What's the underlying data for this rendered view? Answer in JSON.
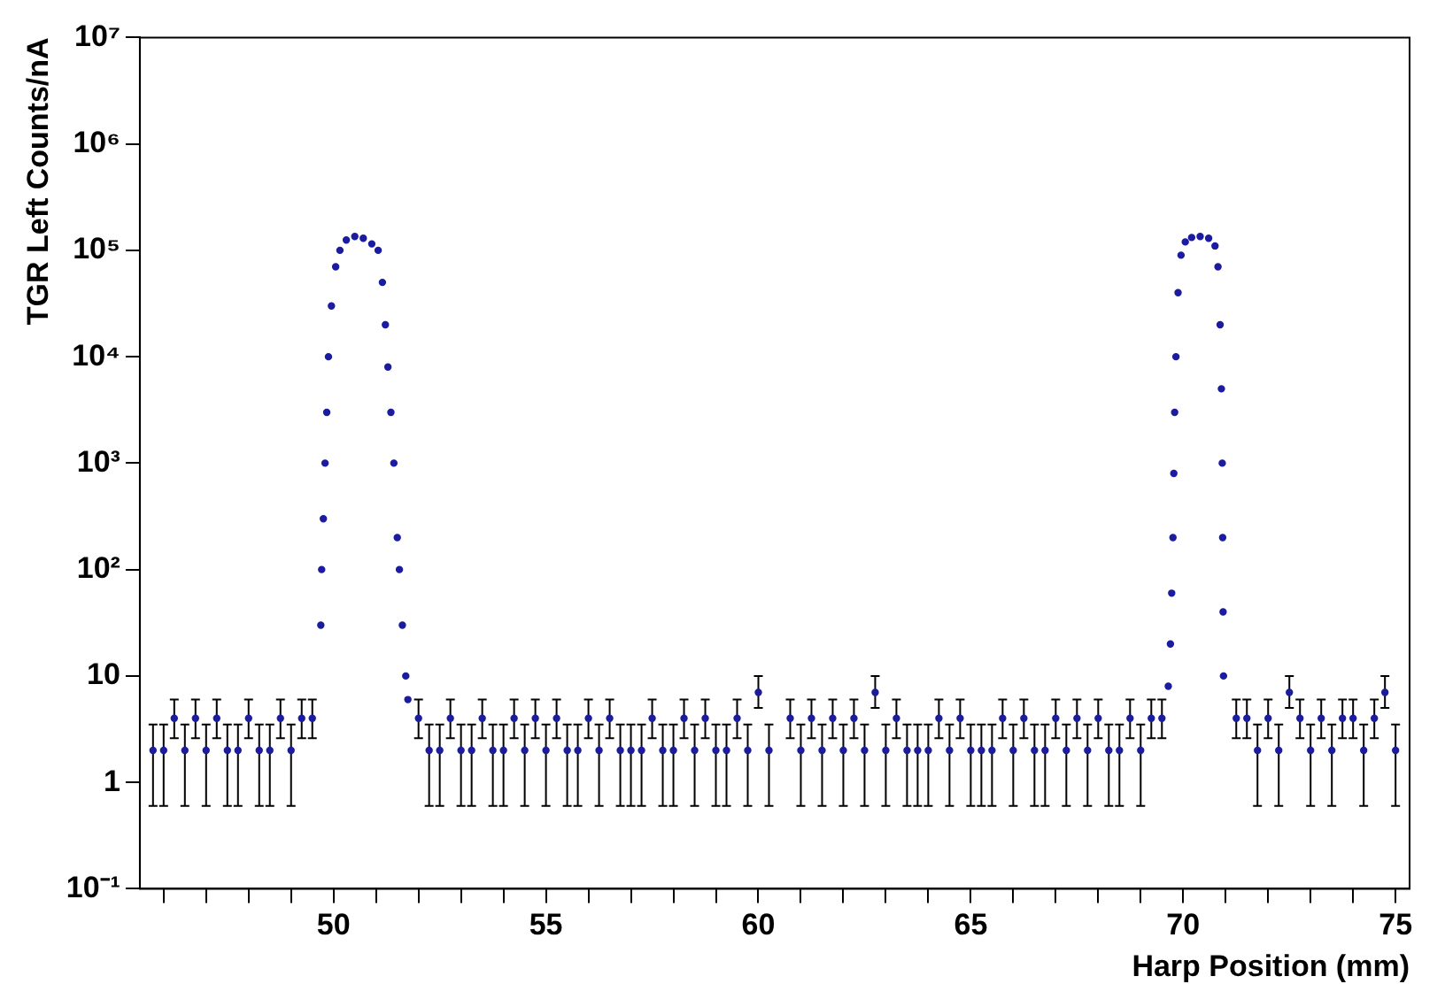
{
  "chart_data": {
    "type": "scatter",
    "xlabel": "Harp Position (mm)",
    "ylabel": "TGR Left Counts/nA",
    "log": "y",
    "grid": false,
    "legend": false,
    "marker": "circle",
    "xlim": [
      45.44,
      75.33
    ],
    "xticks": [
      {
        "value": 46,
        "label": null
      },
      {
        "value": 47,
        "label": null
      },
      {
        "value": 48,
        "label": null
      },
      {
        "value": 49,
        "label": null
      },
      50,
      {
        "value": 51,
        "label": null
      },
      {
        "value": 52,
        "label": null
      },
      {
        "value": 53,
        "label": null
      },
      {
        "value": 54,
        "label": null
      },
      55,
      {
        "value": 56,
        "label": null
      },
      {
        "value": 57,
        "label": null
      },
      {
        "value": 58,
        "label": null
      },
      {
        "value": 59,
        "label": null
      },
      60,
      {
        "value": 61,
        "label": null
      },
      {
        "value": 62,
        "label": null
      },
      {
        "value": 63,
        "label": null
      },
      {
        "value": 64,
        "label": null
      },
      65,
      {
        "value": 66,
        "label": null
      },
      {
        "value": 67,
        "label": null
      },
      {
        "value": 68,
        "label": null
      },
      {
        "value": 69,
        "label": null
      },
      70,
      {
        "value": 71,
        "label": null
      },
      {
        "value": 72,
        "label": null
      },
      {
        "value": 73,
        "label": null
      },
      {
        "value": 74,
        "label": null
      },
      75
    ],
    "ylim": [
      0.1,
      10000000
    ],
    "yticks": [
      {
        "value": 0.1,
        "label": "10⁻¹"
      },
      1,
      10,
      {
        "value": 100,
        "label": "10²"
      },
      {
        "value": 1000,
        "label": "10³"
      },
      {
        "value": 10000,
        "label": "10⁴"
      },
      {
        "value": 100000,
        "label": "10⁵"
      },
      {
        "value": 1000000,
        "label": "10⁶"
      },
      {
        "value": 10000000,
        "label": "10⁷"
      }
    ],
    "series": [
      {
        "color": "#1c1ca0",
        "x": [
          45.75,
          46,
          46.25,
          46.5,
          46.75,
          47,
          47.25,
          47.5,
          47.75,
          48,
          48.25,
          48.5,
          48.75,
          49,
          49.25,
          49.5,
          49.7,
          49.72,
          49.76,
          49.8,
          49.84,
          49.88,
          49.95,
          50.05,
          50.15,
          50.3,
          50.5,
          50.7,
          50.9,
          51.05,
          51.15,
          51.22,
          51.28,
          51.35,
          51.42,
          51.5,
          51.55,
          51.62,
          51.7,
          51.75,
          52,
          52.25,
          52.5,
          52.75,
          53,
          53.25,
          53.5,
          53.75,
          54,
          54.25,
          54.5,
          54.75,
          55,
          55.25,
          55.5,
          55.75,
          56,
          56.25,
          56.5,
          56.75,
          57,
          57.25,
          57.5,
          57.75,
          58,
          58.25,
          58.5,
          58.75,
          59,
          59.25,
          59.5,
          59.75,
          60,
          60.25,
          60.75,
          61,
          61.25,
          61.5,
          61.75,
          62,
          62.25,
          62.5,
          62.75,
          63,
          63.25,
          63.5,
          63.75,
          64,
          64.25,
          64.5,
          64.75,
          65,
          65.25,
          65.5,
          65.75,
          66,
          66.25,
          66.5,
          66.75,
          67,
          67.25,
          67.5,
          67.75,
          68,
          68.25,
          68.5,
          68.75,
          69,
          69.25,
          69.5,
          69.65,
          69.7,
          69.73,
          69.76,
          69.78,
          69.8,
          69.83,
          69.88,
          69.95,
          70.05,
          70.2,
          70.4,
          70.6,
          70.75,
          70.82,
          70.87,
          70.9,
          70.92,
          70.93,
          70.94,
          70.95,
          71.25,
          71.5,
          71.75,
          72,
          72.25,
          72.5,
          72.75,
          73,
          73.25,
          73.5,
          73.75,
          74,
          74.25,
          74.5,
          74.75,
          75
        ],
        "values": [
          2,
          2,
          4,
          2,
          4,
          2,
          4,
          2,
          2,
          4,
          2,
          2,
          4,
          2,
          4,
          4,
          30,
          100,
          300,
          1000,
          3000,
          10000,
          30000,
          70000,
          100000,
          125000,
          135000,
          130000,
          115000,
          100000,
          50000,
          20000,
          8000,
          3000,
          1000,
          200,
          100,
          30,
          10,
          6,
          4,
          2,
          2,
          4,
          2,
          2,
          4,
          2,
          2,
          4,
          2,
          4,
          2,
          4,
          2,
          2,
          4,
          2,
          4,
          2,
          2,
          2,
          4,
          2,
          2,
          4,
          2,
          4,
          2,
          2,
          4,
          2,
          7,
          2,
          4,
          2,
          4,
          2,
          4,
          2,
          4,
          2,
          7,
          2,
          4,
          2,
          2,
          2,
          4,
          2,
          4,
          2,
          2,
          2,
          4,
          2,
          4,
          2,
          2,
          4,
          2,
          4,
          2,
          4,
          2,
          2,
          4,
          2,
          4,
          4,
          8,
          20,
          60,
          200,
          800,
          3000,
          10000,
          40000,
          90000,
          120000,
          132000,
          135000,
          130000,
          110000,
          70000,
          20000,
          5000,
          1000,
          200,
          40,
          10,
          4,
          4,
          2,
          4,
          2,
          7,
          4,
          2,
          4,
          2,
          4,
          4,
          2,
          4,
          7,
          2
        ],
        "errors": [
          [
            0.6,
            3.5
          ],
          [
            0.6,
            3.5
          ],
          [
            2.6,
            6
          ],
          [
            0.6,
            3.5
          ],
          [
            2.6,
            6
          ],
          [
            0.6,
            3.5
          ],
          [
            2.6,
            6
          ],
          [
            0.6,
            3.5
          ],
          [
            0.6,
            3.5
          ],
          [
            2.6,
            6
          ],
          [
            0.6,
            3.5
          ],
          [
            0.6,
            3.5
          ],
          [
            2.6,
            6
          ],
          [
            0.6,
            3.5
          ],
          [
            2.6,
            6
          ],
          [
            2.6,
            6
          ],
          null,
          null,
          null,
          null,
          null,
          null,
          null,
          null,
          null,
          null,
          null,
          null,
          null,
          null,
          null,
          null,
          null,
          null,
          null,
          null,
          null,
          null,
          null,
          null,
          [
            2.6,
            6
          ],
          [
            0.6,
            3.5
          ],
          [
            0.6,
            3.5
          ],
          [
            2.6,
            6
          ],
          [
            0.6,
            3.5
          ],
          [
            0.6,
            3.5
          ],
          [
            2.6,
            6
          ],
          [
            0.6,
            3.5
          ],
          [
            0.6,
            3.5
          ],
          [
            2.6,
            6
          ],
          [
            0.6,
            3.5
          ],
          [
            2.6,
            6
          ],
          [
            0.6,
            3.5
          ],
          [
            2.6,
            6
          ],
          [
            0.6,
            3.5
          ],
          [
            0.6,
            3.5
          ],
          [
            2.6,
            6
          ],
          [
            0.6,
            3.5
          ],
          [
            2.6,
            6
          ],
          [
            0.6,
            3.5
          ],
          [
            0.6,
            3.5
          ],
          [
            0.6,
            3.5
          ],
          [
            2.6,
            6
          ],
          [
            0.6,
            3.5
          ],
          [
            0.6,
            3.5
          ],
          [
            2.6,
            6
          ],
          [
            0.6,
            3.5
          ],
          [
            2.6,
            6
          ],
          [
            0.6,
            3.5
          ],
          [
            0.6,
            3.5
          ],
          [
            2.6,
            6
          ],
          [
            0.6,
            3.5
          ],
          [
            5,
            10
          ],
          [
            0.6,
            3.5
          ],
          [
            2.6,
            6
          ],
          [
            0.6,
            3.5
          ],
          [
            2.6,
            6
          ],
          [
            0.6,
            3.5
          ],
          [
            2.6,
            6
          ],
          [
            0.6,
            3.5
          ],
          [
            2.6,
            6
          ],
          [
            0.6,
            3.5
          ],
          [
            5,
            10
          ],
          [
            0.6,
            3.5
          ],
          [
            2.6,
            6
          ],
          [
            0.6,
            3.5
          ],
          [
            0.6,
            3.5
          ],
          [
            0.6,
            3.5
          ],
          [
            2.6,
            6
          ],
          [
            0.6,
            3.5
          ],
          [
            2.6,
            6
          ],
          [
            0.6,
            3.5
          ],
          [
            0.6,
            3.5
          ],
          [
            0.6,
            3.5
          ],
          [
            2.6,
            6
          ],
          [
            0.6,
            3.5
          ],
          [
            2.6,
            6
          ],
          [
            0.6,
            3.5
          ],
          [
            0.6,
            3.5
          ],
          [
            2.6,
            6
          ],
          [
            0.6,
            3.5
          ],
          [
            2.6,
            6
          ],
          [
            0.6,
            3.5
          ],
          [
            2.6,
            6
          ],
          [
            0.6,
            3.5
          ],
          [
            0.6,
            3.5
          ],
          [
            2.6,
            6
          ],
          [
            0.6,
            3.5
          ],
          [
            2.6,
            6
          ],
          [
            2.6,
            6
          ],
          null,
          null,
          null,
          null,
          null,
          null,
          null,
          null,
          null,
          null,
          null,
          null,
          null,
          null,
          null,
          null,
          null,
          null,
          null,
          null,
          null,
          [
            2.6,
            6
          ],
          [
            2.6,
            6
          ],
          [
            0.6,
            3.5
          ],
          [
            2.6,
            6
          ],
          [
            0.6,
            3.5
          ],
          [
            5,
            10
          ],
          [
            2.6,
            6
          ],
          [
            0.6,
            3.5
          ],
          [
            2.6,
            6
          ],
          [
            0.6,
            3.5
          ],
          [
            2.6,
            6
          ],
          [
            2.6,
            6
          ],
          [
            0.6,
            3.5
          ],
          [
            2.6,
            6
          ],
          [
            5,
            10
          ],
          [
            0.6,
            3.5
          ]
        ]
      }
    ]
  }
}
